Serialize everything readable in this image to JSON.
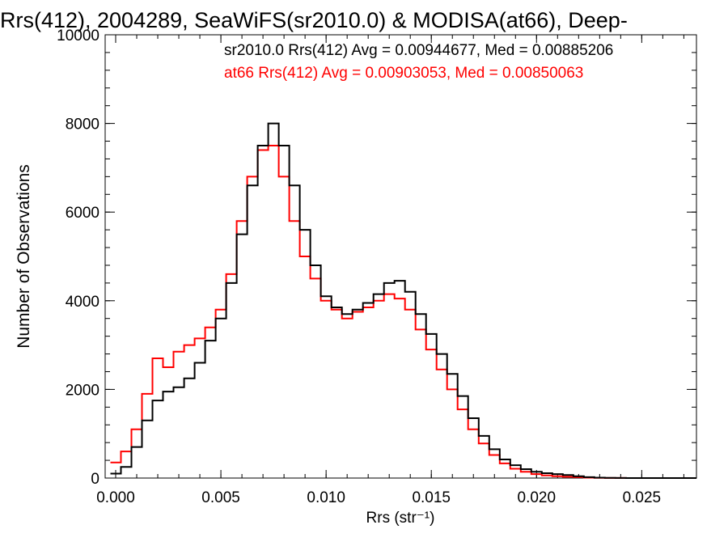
{
  "chart_data": {
    "type": "line",
    "title": "Rrs(412), 2004289, SeaWiFS(sr2010.0) & MODISA(at66), Deep-",
    "xlabel": "Rrs (str⁻¹)",
    "ylabel": "Number of Observations",
    "xlim": [
      -0.0005,
      0.0276
    ],
    "ylim": [
      0,
      10000
    ],
    "x_ticks": [
      "0.000",
      "0.005",
      "0.010",
      "0.015",
      "0.020",
      "0.025"
    ],
    "y_ticks": [
      "0",
      "2000",
      "4000",
      "6000",
      "8000",
      "10000"
    ],
    "grid": false,
    "legend_position": "top-right",
    "annotations": [
      {
        "text": "sr2010.0 Rrs(412) Avg = 0.00944677, Med = 0.00885206",
        "color": "#000000"
      },
      {
        "text": "at66 Rrs(412) Avg = 0.00903053, Med = 0.00850063",
        "color": "#ff0000"
      }
    ],
    "x": [
      0.0,
      0.0005,
      0.001,
      0.0015,
      0.002,
      0.0025,
      0.003,
      0.0035,
      0.004,
      0.0045,
      0.005,
      0.0055,
      0.006,
      0.0065,
      0.007,
      0.0075,
      0.008,
      0.0085,
      0.009,
      0.0095,
      0.01,
      0.0105,
      0.011,
      0.0115,
      0.012,
      0.0125,
      0.013,
      0.0135,
      0.014,
      0.0145,
      0.015,
      0.0155,
      0.016,
      0.0165,
      0.017,
      0.0175,
      0.018,
      0.0185,
      0.019,
      0.0195,
      0.02,
      0.0205,
      0.021,
      0.0215,
      0.022,
      0.0225,
      0.023,
      0.0235,
      0.024,
      0.0245,
      0.025,
      0.0255,
      0.026,
      0.0265,
      0.027,
      0.0275
    ],
    "series": [
      {
        "name": "sr2010.0",
        "color": "#000000",
        "values": [
          100,
          250,
          700,
          1300,
          1750,
          1950,
          2050,
          2250,
          2600,
          3100,
          3600,
          4400,
          5500,
          6600,
          7500,
          8000,
          7500,
          6600,
          5600,
          4800,
          4100,
          3850,
          3700,
          3800,
          3950,
          4150,
          4400,
          4450,
          4200,
          3700,
          3250,
          2800,
          2350,
          1850,
          1350,
          950,
          650,
          420,
          290,
          200,
          140,
          110,
          90,
          70,
          40,
          20,
          10,
          5,
          2,
          0,
          0,
          0,
          0,
          0,
          0,
          0
        ]
      },
      {
        "name": "at66",
        "color": "#ff0000",
        "values": [
          350,
          600,
          1100,
          1900,
          2700,
          2500,
          2850,
          3000,
          3150,
          3400,
          3800,
          4600,
          5800,
          6800,
          7400,
          7500,
          6800,
          5800,
          5000,
          4500,
          4000,
          3800,
          3600,
          3750,
          3850,
          4000,
          4150,
          4050,
          3800,
          3350,
          2900,
          2450,
          2000,
          1550,
          1100,
          780,
          520,
          330,
          210,
          140,
          90,
          60,
          40,
          30,
          20,
          10,
          5,
          2,
          1,
          0,
          0,
          0,
          0,
          0,
          0,
          0
        ]
      }
    ]
  }
}
